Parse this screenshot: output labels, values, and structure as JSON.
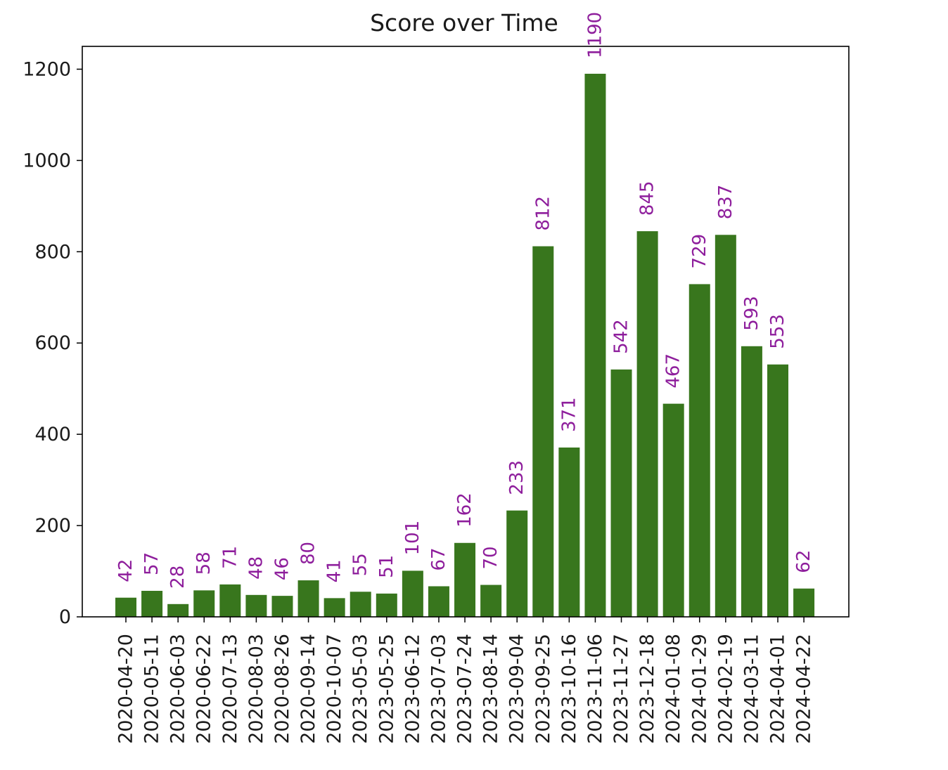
{
  "chart_data": {
    "type": "bar",
    "title": "Score over Time",
    "xlabel": "",
    "ylabel": "",
    "categories": [
      "2020-04-20",
      "2020-05-11",
      "2020-06-03",
      "2020-06-22",
      "2020-07-13",
      "2020-08-03",
      "2020-08-26",
      "2020-09-14",
      "2020-10-07",
      "2023-05-03",
      "2023-05-25",
      "2023-06-12",
      "2023-07-03",
      "2023-07-24",
      "2023-08-14",
      "2023-09-04",
      "2023-09-25",
      "2023-10-16",
      "2023-11-06",
      "2023-11-27",
      "2023-12-18",
      "2024-01-08",
      "2024-01-29",
      "2024-02-19",
      "2024-03-11",
      "2024-04-01",
      "2024-04-22"
    ],
    "values": [
      42,
      57,
      28,
      58,
      71,
      48,
      46,
      80,
      41,
      55,
      51,
      101,
      67,
      162,
      70,
      233,
      812,
      371,
      1190,
      542,
      845,
      467,
      729,
      837,
      593,
      553,
      62
    ],
    "ylim": [
      0,
      1250
    ],
    "yticks": [
      0,
      200,
      400,
      600,
      800,
      1000,
      1200
    ],
    "bar_color": "#38761d",
    "label_color": "#8e1e9c",
    "grid": false,
    "legend": "none"
  }
}
